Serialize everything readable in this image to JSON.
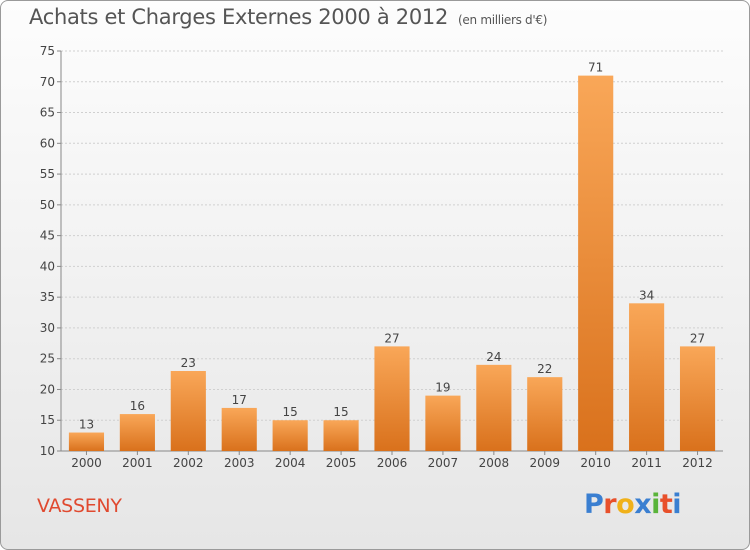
{
  "header": {
    "title": "Achats et Charges Externes 2000 à 2012",
    "unit": "(en milliers d'€)"
  },
  "footer": {
    "commune": "VASSENY",
    "logo_letters": [
      "P",
      "r",
      "o",
      "x",
      "i",
      "t",
      "i"
    ]
  },
  "colors": {
    "bar_top": "#f9a758",
    "bar_bottom": "#d9711c",
    "commune_text": "#e0492f",
    "logo": [
      "#3a7fd1",
      "#e8502b",
      "#f0b119",
      "#3a7fd1",
      "#5ab43a",
      "#e8502b",
      "#3a7fd1"
    ]
  },
  "chart_data": {
    "type": "bar",
    "title": "Achats et Charges Externes 2000 à 2012",
    "subtitle": "(en milliers d'€)",
    "categories": [
      "2000",
      "2001",
      "2002",
      "2003",
      "2004",
      "2005",
      "2006",
      "2007",
      "2008",
      "2009",
      "2010",
      "2011",
      "2012"
    ],
    "values": [
      13,
      16,
      23,
      17,
      15,
      15,
      27,
      19,
      24,
      22,
      71,
      34,
      27
    ],
    "ylim": [
      10,
      75
    ],
    "yticks": [
      10,
      15,
      20,
      25,
      30,
      35,
      40,
      45,
      50,
      55,
      60,
      65,
      70,
      75
    ],
    "grid": true,
    "data_labels": true
  }
}
